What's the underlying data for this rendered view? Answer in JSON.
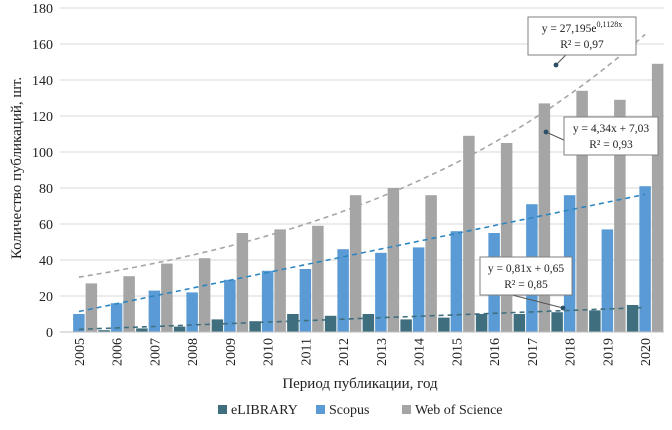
{
  "chart_data": {
    "type": "bar",
    "xlabel": "Период публикации, год",
    "ylabel": "Количество публикаций, шт.",
    "ylim": [
      0,
      180
    ],
    "yticks": [
      0,
      20,
      40,
      60,
      80,
      100,
      120,
      140,
      160,
      180
    ],
    "grid": "horizontal",
    "legend_position": "bottom",
    "categories": [
      "2005",
      "2006",
      "2007",
      "2008",
      "2009",
      "2010",
      "2011",
      "2012",
      "2013",
      "2014",
      "2015",
      "2016",
      "2017",
      "2018",
      "2019",
      "2020"
    ],
    "series": [
      {
        "name": "eLIBRARY",
        "color": "#3f6f7e",
        "values": [
          0,
          1,
          2,
          3,
          7,
          6,
          10,
          9,
          10,
          7,
          8,
          10,
          10,
          11,
          12,
          15
        ]
      },
      {
        "name": "Scopus",
        "color": "#5b9bd5",
        "values": [
          10,
          16,
          23,
          22,
          29,
          34,
          35,
          46,
          44,
          47,
          56,
          55,
          71,
          76,
          57,
          81
        ]
      },
      {
        "name": "Web of Science",
        "color": "#a5a5a5",
        "values": [
          27,
          31,
          38,
          41,
          55,
          57,
          59,
          76,
          80,
          76,
          109,
          105,
          127,
          134,
          129,
          149
        ]
      }
    ],
    "trendlines": [
      {
        "series": "Web of Science",
        "type": "exponential",
        "color": "#a5a5a5",
        "a": 27.195,
        "b": 0.1128,
        "equation_main": "y = 27,195e",
        "equation_exp": "0,1128x",
        "r2": "R² = 0,97"
      },
      {
        "series": "Scopus",
        "type": "linear",
        "color": "#2e86c1",
        "slope": 4.34,
        "intercept": 7.03,
        "equation": "y = 4,34x + 7,03",
        "r2": "R² = 0,93"
      },
      {
        "series": "eLIBRARY",
        "type": "linear",
        "color": "#3f6f7e",
        "slope": 0.81,
        "intercept": 0.65,
        "equation": "y = 0,81x + 0,65",
        "r2": "R² = 0,85"
      }
    ]
  }
}
